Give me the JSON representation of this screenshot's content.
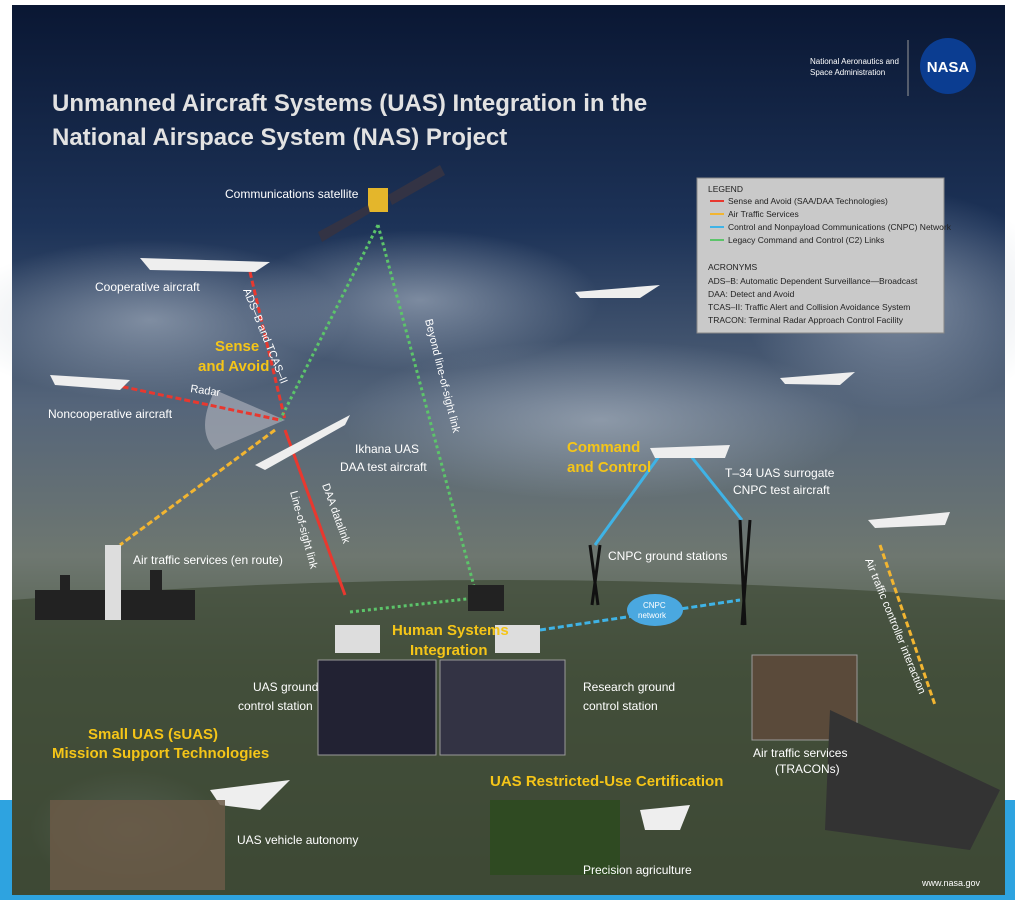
{
  "header": {
    "title": {
      "lines": [
        "Unmanned Aircraft Systems (UAS) Integration in the",
        "National Airspace System (NAS) Project"
      ]
    },
    "agency": {
      "lines": [
        "National Aeronautics and",
        "Space Administration"
      ],
      "logo": "NASA"
    }
  },
  "legend": {
    "title": "LEGEND",
    "items": [
      {
        "label": "Sense and Avoid (SAA/DAA Technologies)",
        "color": "#e8382f"
      },
      {
        "label": "Air Traffic Services",
        "color": "#f2b531"
      },
      {
        "label": "Control and Nonpayload Communications (CNPC) Network",
        "color": "#3fb3e6"
      },
      {
        "label": "Legacy Command and Control (C2) Links",
        "color": "#5cc46a"
      }
    ]
  },
  "acronyms": {
    "title": "ACRONYMS",
    "items": [
      "ADS–B: Automatic Dependent Surveillance—Broadcast",
      "DAA: Detect and Avoid",
      "TCAS–II: Traffic Alert and Collision Avoidance System",
      "TRACON: Terminal Radar Approach Control Facility"
    ]
  },
  "headings": [
    {
      "lines": [
        "Sense",
        "and Avoid"
      ]
    },
    {
      "lines": [
        "Command",
        "and Control"
      ]
    },
    {
      "lines": [
        "Human Systems",
        "Integration"
      ]
    },
    {
      "lines": [
        "Small UAS (sUAS)",
        "Mission Support Technologies"
      ]
    },
    {
      "lines": [
        "UAS Restricted-Use Certification"
      ]
    }
  ],
  "labels": [
    {
      "lines": [
        "Communications satellite"
      ]
    },
    {
      "lines": [
        "Cooperative aircraft"
      ]
    },
    {
      "lines": [
        "Noncooperative aircraft"
      ]
    },
    {
      "lines": [
        "Ikhana UAS",
        "DAA test aircraft"
      ]
    },
    {
      "lines": [
        "Air traffic services (en route)"
      ]
    },
    {
      "lines": [
        "T–34 UAS surrogate",
        "CNPC test aircraft"
      ]
    },
    {
      "lines": [
        "CNPC ground stations"
      ]
    },
    {
      "lines": [
        "CNPC",
        "network"
      ]
    },
    {
      "lines": [
        "UAS ground",
        "control station"
      ]
    },
    {
      "lines": [
        "Research ground",
        "control station"
      ]
    },
    {
      "lines": [
        "Air traffic services",
        "(TRACONs)"
      ]
    },
    {
      "lines": [
        "UAS vehicle autonomy"
      ]
    },
    {
      "lines": [
        "Precision agriculture"
      ]
    },
    {
      "lines": [
        "www.nasa.gov"
      ]
    }
  ],
  "links": [
    "ADS–B and TCAS–II",
    "Radar",
    "Beyond line-of-sight link",
    "DAA datalink",
    "Line-of-sight link",
    "Air traffic controller interaction"
  ]
}
